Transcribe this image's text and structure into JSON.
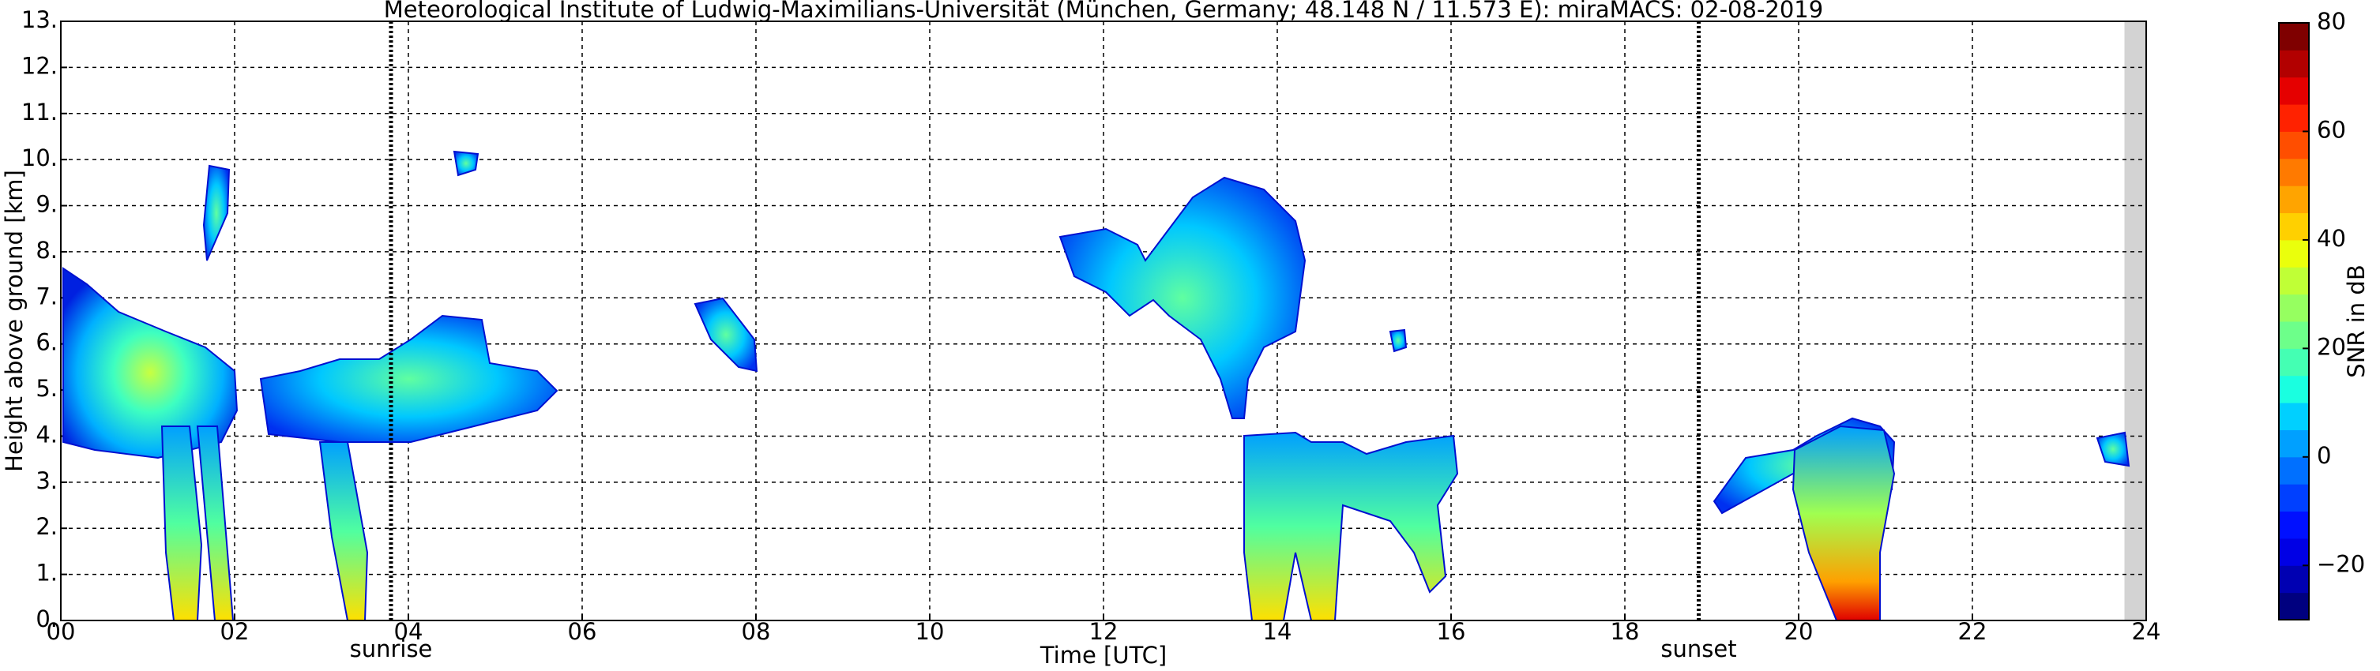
{
  "chart_data": {
    "type": "time-height",
    "title": "Meteorological Institute of Ludwig-Maximilians-Universität (München, Germany; 48.148 N / 11.573 E):    miraMACS: 02-08-2019",
    "xlabel": "Time [UTC]",
    "ylabel": "Height above ground [km]",
    "xlim": [
      0,
      24
    ],
    "ylim": [
      0,
      13
    ],
    "xticks": [
      {
        "value": 0,
        "label": "00"
      },
      {
        "value": 2,
        "label": "02"
      },
      {
        "value": 4,
        "label": "04"
      },
      {
        "value": 6,
        "label": "06"
      },
      {
        "value": 8,
        "label": "08"
      },
      {
        "value": 10,
        "label": "10"
      },
      {
        "value": 12,
        "label": "12"
      },
      {
        "value": 14,
        "label": "14"
      },
      {
        "value": 16,
        "label": "16"
      },
      {
        "value": 18,
        "label": "18"
      },
      {
        "value": 20,
        "label": "20"
      },
      {
        "value": 22,
        "label": "22"
      },
      {
        "value": 24,
        "label": "24"
      }
    ],
    "yticks": [
      {
        "value": 0,
        "label": "0."
      },
      {
        "value": 1,
        "label": "1."
      },
      {
        "value": 2,
        "label": "2."
      },
      {
        "value": 3,
        "label": "3."
      },
      {
        "value": 4,
        "label": "4."
      },
      {
        "value": 5,
        "label": "5."
      },
      {
        "value": 6,
        "label": "6."
      },
      {
        "value": 7,
        "label": "7."
      },
      {
        "value": 8,
        "label": "8."
      },
      {
        "value": 9,
        "label": "9."
      },
      {
        "value": 10,
        "label": "10."
      },
      {
        "value": 11,
        "label": "11."
      },
      {
        "value": 12,
        "label": "12."
      },
      {
        "value": 13,
        "label": "13."
      }
    ],
    "grid": true,
    "annotations": [
      {
        "text": "sunrise",
        "x": 3.8
      },
      {
        "text": "sunset",
        "x": 18.85
      }
    ],
    "no_data_x": [
      23.75,
      24
    ],
    "colorbar": {
      "label": "SNR in dB",
      "clim": [
        -30,
        80
      ],
      "ticks": [
        {
          "value": -20,
          "label": "−20"
        },
        0,
        20,
        40,
        60,
        80
      ],
      "colormap": [
        "#00007f",
        "#0000b2",
        "#0000e5",
        "#0010ff",
        "#0040ff",
        "#0070ff",
        "#00a0ff",
        "#00d0ff",
        "#1affe0",
        "#44ffb3",
        "#6dff8a",
        "#96ff60",
        "#c0ff36",
        "#eaff0c",
        "#ffd000",
        "#ffa400",
        "#ff7a00",
        "#ff4e00",
        "#ff2200",
        "#e50000",
        "#b20000",
        "#7f0000"
      ]
    }
  }
}
